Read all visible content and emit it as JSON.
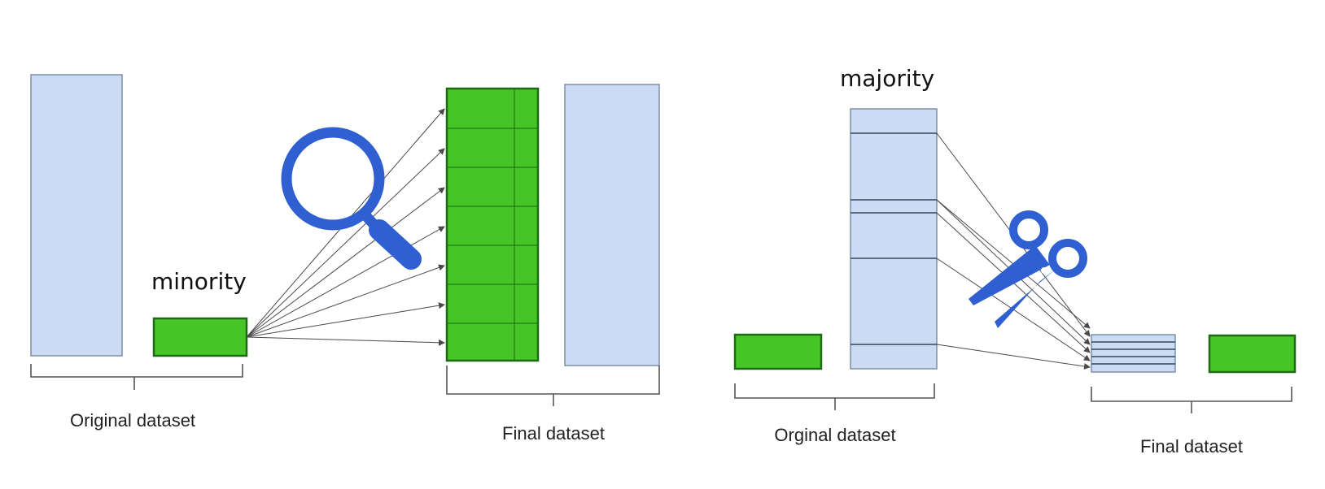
{
  "oversampling": {
    "minority_label": "minority",
    "original_label": "Original dataset",
    "final_label": "Final dataset",
    "tool_icon": "magnifying-glass-icon"
  },
  "undersampling": {
    "majority_label": "majority",
    "original_label": "Orginal dataset",
    "final_label": "Final dataset",
    "tool_icon": "scissors-icon"
  },
  "colors": {
    "minority_green": "#46c526",
    "majority_blue": "#c9dcf3",
    "icon_blue": "#2f5fd0"
  }
}
